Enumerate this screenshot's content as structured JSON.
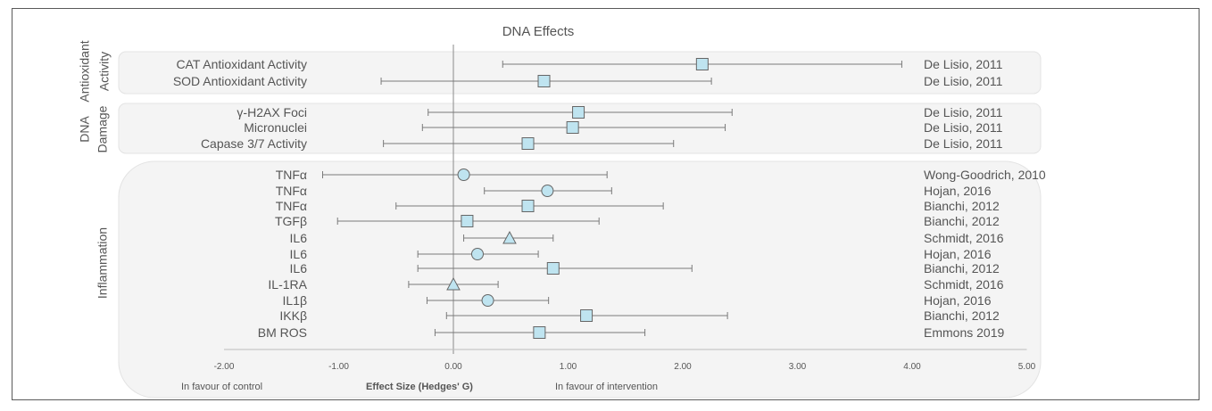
{
  "chart_data": {
    "type": "forest",
    "title": "DNA Effects",
    "xlabel": "Effect Size (Hedges' G)",
    "left_annotation": "In favour of control",
    "right_annotation": "In favour of intervention",
    "xlim": [
      -2.0,
      5.0
    ],
    "xticks": [
      "-2.00",
      "-1.00",
      "0.00",
      "1.00",
      "2.00",
      "3.00",
      "4.00",
      "5.00"
    ],
    "reference_line": 0,
    "marker_color": "#bfe4f0",
    "groups": [
      {
        "label": [
          "Antioxidant",
          "Activity"
        ],
        "rows": [
          {
            "label": "CAT Antioxidant Activity",
            "study": "De Lisio, 2011",
            "effect": 2.17,
            "ci": [
              0.43,
              3.91
            ],
            "marker": "square"
          },
          {
            "label": "SOD Antioxidant Activity",
            "study": "De Lisio, 2011",
            "effect": 0.79,
            "ci": [
              -0.63,
              2.25
            ],
            "marker": "square"
          }
        ]
      },
      {
        "label": [
          "DNA",
          "Damage"
        ],
        "rows": [
          {
            "label": "γ-H2AX Foci",
            "study": "De Lisio, 2011",
            "effect": 1.09,
            "ci": [
              -0.22,
              2.43
            ],
            "marker": "square"
          },
          {
            "label": "Micronuclei",
            "study": "De Lisio, 2011",
            "effect": 1.04,
            "ci": [
              -0.27,
              2.37
            ],
            "marker": "square"
          },
          {
            "label": "Capase 3/7 Activity",
            "study": "De Lisio, 2011",
            "effect": 0.65,
            "ci": [
              -0.61,
              1.92
            ],
            "marker": "square"
          }
        ]
      },
      {
        "label": [
          "Inflammation"
        ],
        "rows": [
          {
            "label": "TNFα",
            "study": "Wong-Goodrich,  2010",
            "effect": 0.09,
            "ci": [
              -1.14,
              1.34
            ],
            "marker": "circle"
          },
          {
            "label": "TNFα",
            "study": "Hojan, 2016",
            "effect": 0.82,
            "ci": [
              0.27,
              1.38
            ],
            "marker": "circle"
          },
          {
            "label": "TNFα",
            "study": "Bianchi, 2012",
            "effect": 0.65,
            "ci": [
              -0.5,
              1.83
            ],
            "marker": "square"
          },
          {
            "label": "TGFβ",
            "study": "Bianchi, 2012",
            "effect": 0.12,
            "ci": [
              -1.01,
              1.27
            ],
            "marker": "square"
          },
          {
            "label": "IL6",
            "study": "Schmidt, 2016",
            "effect": 0.49,
            "ci": [
              0.09,
              0.87
            ],
            "marker": "triangle"
          },
          {
            "label": "IL6",
            "study": "Hojan, 2016",
            "effect": 0.21,
            "ci": [
              -0.31,
              0.74
            ],
            "marker": "circle"
          },
          {
            "label": "IL6",
            "study": "Bianchi, 2012",
            "effect": 0.87,
            "ci": [
              -0.31,
              2.08
            ],
            "marker": "square"
          },
          {
            "label": "IL-1RA",
            "study": "Schmidt, 2016",
            "effect": 0.0,
            "ci": [
              -0.39,
              0.39
            ],
            "marker": "triangle"
          },
          {
            "label": "IL1β",
            "study": "Hojan, 2016",
            "effect": 0.3,
            "ci": [
              -0.23,
              0.83
            ],
            "marker": "circle"
          },
          {
            "label": "IKKβ",
            "study": "Bianchi, 2012",
            "effect": 1.16,
            "ci": [
              -0.06,
              2.39
            ],
            "marker": "square"
          },
          {
            "label": "BM ROS",
            "study": "Emmons 2019",
            "effect": 0.75,
            "ci": [
              -0.16,
              1.67
            ],
            "marker": "square"
          }
        ]
      }
    ]
  }
}
